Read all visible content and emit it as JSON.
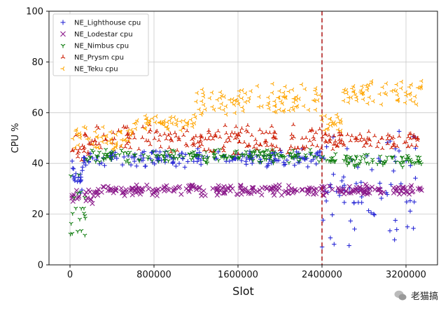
{
  "chart_data": {
    "type": "scatter",
    "title": "",
    "xlabel": "Slot",
    "ylabel": "CPU %",
    "xlim": [
      -200000,
      3500000
    ],
    "ylim": [
      0,
      100
    ],
    "xticks": [
      0,
      800000,
      1600000,
      2400000,
      3200000
    ],
    "xtick_labels": [
      "0",
      "800000",
      "1600000",
      "2400000",
      "3200000"
    ],
    "yticks": [
      0,
      20,
      40,
      60,
      80,
      100
    ],
    "ytick_labels": [
      "0",
      "20",
      "40",
      "60",
      "80",
      "100"
    ],
    "grid": true,
    "legend_position": "top-left",
    "vline": {
      "x": 2400000,
      "color": "#b22222",
      "style": "dashed"
    },
    "series": [
      {
        "name": "NE_Lighthouse cpu",
        "marker": "+",
        "color": "#2b2bd6",
        "segments": [
          {
            "x0": 0,
            "x1": 120000,
            "y_low": 25,
            "y_high": 45
          },
          {
            "x0": 120000,
            "x1": 2400000,
            "y_low": 38,
            "y_high": 46
          },
          {
            "x0": 2400000,
            "x1": 3350000,
            "y_low": 5,
            "y_high": 58
          }
        ]
      },
      {
        "name": "NE_Lodestar cpu",
        "marker": "x",
        "color": "#8b1a8b",
        "segments": [
          {
            "x0": 0,
            "x1": 250000,
            "y_low": 24,
            "y_high": 30
          },
          {
            "x0": 250000,
            "x1": 3350000,
            "y_low": 27,
            "y_high": 32
          }
        ]
      },
      {
        "name": "NE_Nimbus cpu",
        "marker": "tri_down",
        "color": "#0a7a0a",
        "segments": [
          {
            "x0": 0,
            "x1": 150000,
            "y_low": 5,
            "y_high": 40
          },
          {
            "x0": 150000,
            "x1": 2400000,
            "y_low": 40,
            "y_high": 46
          },
          {
            "x0": 2400000,
            "x1": 3350000,
            "y_low": 38,
            "y_high": 44
          }
        ]
      },
      {
        "name": "NE_Prysm cpu",
        "marker": "tri_up",
        "color": "#cc1a00",
        "segments": [
          {
            "x0": 0,
            "x1": 200000,
            "y_low": 40,
            "y_high": 52
          },
          {
            "x0": 200000,
            "x1": 2400000,
            "y_low": 43,
            "y_high": 56
          },
          {
            "x0": 2400000,
            "x1": 3350000,
            "y_low": 45,
            "y_high": 53
          }
        ]
      },
      {
        "name": "NE_Teku cpu",
        "marker": "tri_left",
        "color": "#ffa500",
        "segments": [
          {
            "x0": 0,
            "x1": 600000,
            "y_low": 45,
            "y_high": 55
          },
          {
            "x0": 600000,
            "x1": 1200000,
            "y_low": 52,
            "y_high": 60
          },
          {
            "x0": 1200000,
            "x1": 2400000,
            "y_low": 58,
            "y_high": 72
          },
          {
            "x0": 2400000,
            "x1": 2600000,
            "y_low": 52,
            "y_high": 60
          },
          {
            "x0": 2600000,
            "x1": 3350000,
            "y_low": 62,
            "y_high": 74
          }
        ]
      }
    ]
  },
  "watermark": {
    "text": "老猫搞",
    "icon": "wechat-icon"
  }
}
